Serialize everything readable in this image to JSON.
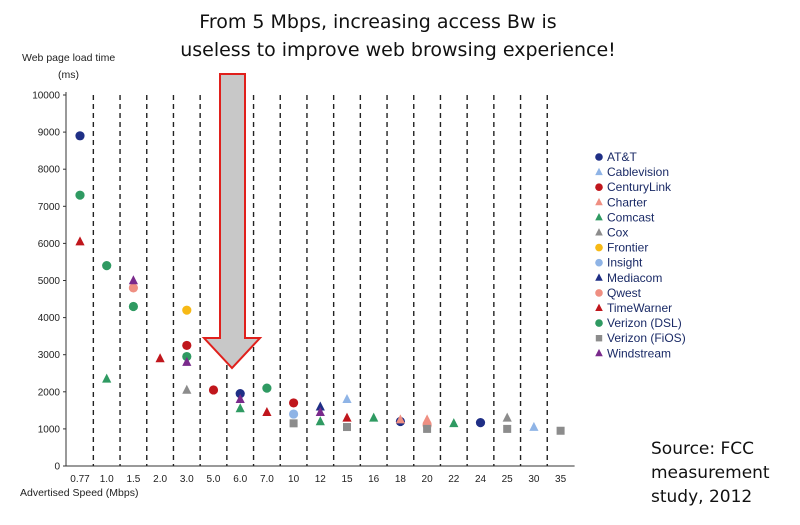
{
  "headline": {
    "line1": "From 5 Mbps, increasing access Bw is",
    "line2": "useless to improve web browsing experience!"
  },
  "source": {
    "line1": "Source: FCC",
    "line2": "measurement",
    "line3": "study, 2012"
  },
  "colors": {
    "AT&T": "#1f2f86",
    "Cablevision": "#8fb4e6",
    "CenturyLink": "#c0161c",
    "Charter": "#ef8f82",
    "Comcast": "#2f9a62",
    "Cox": "#8c8c8c",
    "Frontier": "#f7b915",
    "Insight": "#8fb4e6",
    "Mediacom": "#1f2f86",
    "Qwest": "#ef8f82",
    "TimeWarner": "#c0161c",
    "Verizon (DSL)": "#2f9a62",
    "Verizon (FiOS)": "#8c8c8c",
    "Windstream": "#7a2a8c",
    "arrow_fill": "#c8c8c8",
    "arrow_stroke": "#e0201c"
  },
  "chart_data": {
    "type": "scatter",
    "ylabel": "Web page load time",
    "ylabel_unit": "(ms)",
    "xlabel": "Advertised Speed (Mbps)",
    "x_categories": [
      "0.77",
      "1.0",
      "1.5",
      "2.0",
      "3.0",
      "5.0",
      "6.0",
      "7.0",
      "10",
      "12",
      "15",
      "16",
      "18",
      "20",
      "22",
      "24",
      "25",
      "30",
      "35"
    ],
    "y_ticks": [
      0,
      1000,
      2000,
      3000,
      4000,
      5000,
      6000,
      7000,
      8000,
      9000,
      10000
    ],
    "ylim": [
      0,
      10000
    ],
    "grid": "dashed vertical separators between speed categories",
    "legend_position": "right",
    "series": [
      {
        "name": "AT&T",
        "marker": "circle",
        "points": [
          [
            "0.77",
            8900
          ],
          [
            "6.0",
            1950
          ],
          [
            "18",
            1200
          ],
          [
            "24",
            1170
          ]
        ]
      },
      {
        "name": "Cablevision",
        "marker": "triangle",
        "points": [
          [
            "15",
            1800
          ],
          [
            "30",
            1050
          ]
        ]
      },
      {
        "name": "CenturyLink",
        "marker": "circle",
        "points": [
          [
            "3.0",
            3250
          ],
          [
            "5.0",
            2050
          ],
          [
            "10",
            1700
          ]
        ]
      },
      {
        "name": "Charter",
        "marker": "triangle",
        "points": [
          [
            "18",
            1250
          ],
          [
            "20",
            1250
          ]
        ]
      },
      {
        "name": "Comcast",
        "marker": "triangle",
        "points": [
          [
            "1.0",
            2350
          ],
          [
            "6.0",
            1550
          ],
          [
            "12",
            1200
          ],
          [
            "16",
            1300
          ],
          [
            "22",
            1150
          ]
        ]
      },
      {
        "name": "Cox",
        "marker": "triangle",
        "points": [
          [
            "3.0",
            2050
          ],
          [
            "25",
            1300
          ]
        ]
      },
      {
        "name": "Frontier",
        "marker": "circle",
        "points": [
          [
            "3.0",
            4200
          ]
        ]
      },
      {
        "name": "Insight",
        "marker": "circle",
        "points": [
          [
            "10",
            1400
          ]
        ]
      },
      {
        "name": "Mediacom",
        "marker": "triangle",
        "points": [
          [
            "12",
            1600
          ]
        ]
      },
      {
        "name": "Qwest",
        "marker": "circle",
        "points": [
          [
            "1.5",
            4800
          ],
          [
            "20",
            1100
          ]
        ]
      },
      {
        "name": "TimeWarner",
        "marker": "triangle",
        "points": [
          [
            "0.77",
            6050
          ],
          [
            "2.0",
            2900
          ],
          [
            "7.0",
            1450
          ],
          [
            "15",
            1300
          ]
        ]
      },
      {
        "name": "Verizon (DSL)",
        "marker": "circle",
        "points": [
          [
            "0.77",
            7300
          ],
          [
            "1.0",
            5400
          ],
          [
            "1.5",
            4300
          ],
          [
            "3.0",
            2950
          ],
          [
            "7.0",
            2100
          ]
        ]
      },
      {
        "name": "Verizon (FiOS)",
        "marker": "square",
        "points": [
          [
            "10",
            1150
          ],
          [
            "15",
            1050
          ],
          [
            "20",
            1000
          ],
          [
            "25",
            1000
          ],
          [
            "35",
            950
          ]
        ]
      },
      {
        "name": "Windstream",
        "marker": "triangle",
        "points": [
          [
            "1.5",
            5000
          ],
          [
            "3.0",
            2800
          ],
          [
            "6.0",
            1800
          ],
          [
            "12",
            1450
          ]
        ]
      }
    ]
  }
}
